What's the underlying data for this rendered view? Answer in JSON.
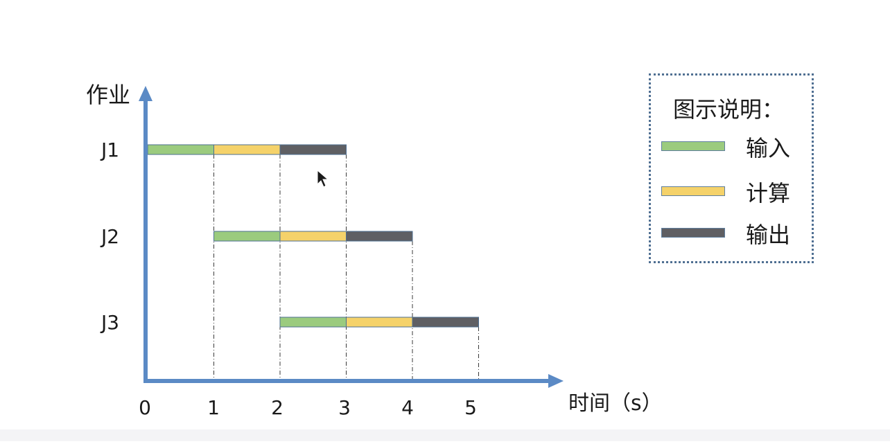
{
  "diagram": {
    "y_axis_label": "作业",
    "x_axis_label": "时间（s）",
    "time_ticks": [
      "0",
      "1",
      "2",
      "3",
      "4",
      "5"
    ],
    "jobs": [
      {
        "name": "J1",
        "segments": [
          {
            "phase": "input",
            "start": 0,
            "end": 1
          },
          {
            "phase": "compute",
            "start": 1,
            "end": 2
          },
          {
            "phase": "output",
            "start": 2,
            "end": 3
          }
        ]
      },
      {
        "name": "J2",
        "segments": [
          {
            "phase": "input",
            "start": 1,
            "end": 2
          },
          {
            "phase": "compute",
            "start": 2,
            "end": 3
          },
          {
            "phase": "output",
            "start": 3,
            "end": 4
          }
        ]
      },
      {
        "name": "J3",
        "segments": [
          {
            "phase": "input",
            "start": 2,
            "end": 3
          },
          {
            "phase": "compute",
            "start": 3,
            "end": 4
          },
          {
            "phase": "output",
            "start": 4,
            "end": 5
          }
        ]
      }
    ],
    "colors": {
      "axis": "#5b8ac5",
      "input": "#9bcb7e",
      "compute": "#f5d26a",
      "output": "#5f5f63",
      "segment_border": "#4d6f92"
    }
  },
  "legend": {
    "title": "图示说明：",
    "items": [
      {
        "phase": "input",
        "label": "输入"
      },
      {
        "phase": "compute",
        "label": "计算"
      },
      {
        "phase": "output",
        "label": "输出"
      }
    ]
  }
}
